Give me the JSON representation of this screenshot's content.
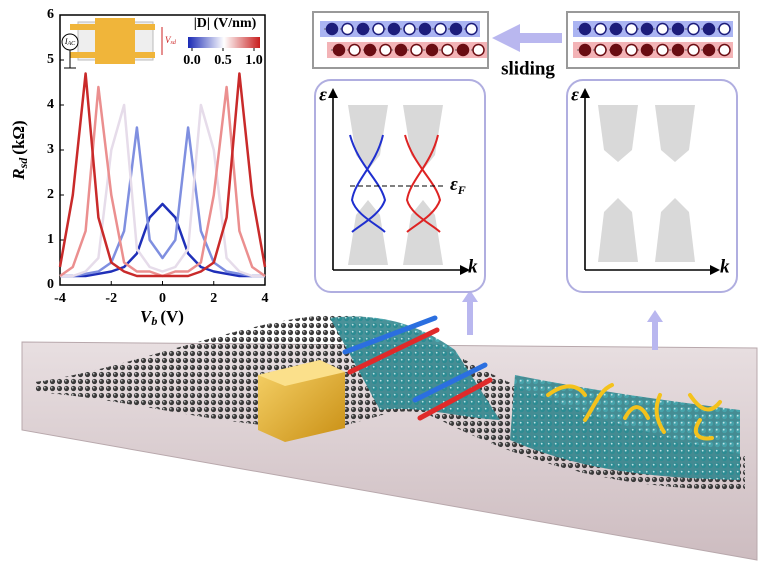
{
  "chart_data": {
    "type": "line",
    "x": [
      -4,
      -3.5,
      -3,
      -2.5,
      -2,
      -1.5,
      -1,
      -0.5,
      0,
      0.5,
      1,
      1.5,
      2,
      2.5,
      3,
      3.5,
      4
    ],
    "xlim": [
      -4,
      4
    ],
    "xticks": [
      -4,
      -2,
      0,
      2,
      4
    ],
    "ylim": [
      0,
      6
    ],
    "yticks": [
      0,
      1,
      2,
      3,
      4,
      5,
      6
    ],
    "x_label": {
      "symbol": "V",
      "sub": "b",
      "unit": "(V)"
    },
    "y_label": {
      "symbol": "R",
      "sub": "sd",
      "unit": "(kΩ)"
    },
    "series": [
      {
        "color": "#1f2fb8",
        "values": [
          0.2,
          0.2,
          0.2,
          0.25,
          0.3,
          0.4,
          0.7,
          1.5,
          1.8,
          1.5,
          0.7,
          0.4,
          0.3,
          0.25,
          0.2,
          0.2,
          0.2
        ]
      },
      {
        "color": "#7f8fe0",
        "values": [
          0.2,
          0.2,
          0.25,
          0.3,
          0.5,
          1.2,
          3.5,
          1.0,
          0.6,
          1.0,
          3.5,
          1.2,
          0.5,
          0.3,
          0.25,
          0.2,
          0.2
        ]
      },
      {
        "color": "#e6dcea",
        "values": [
          0.2,
          0.2,
          0.3,
          0.6,
          3.0,
          4.0,
          0.8,
          0.4,
          0.3,
          0.4,
          0.8,
          4.0,
          3.0,
          0.6,
          0.3,
          0.2,
          0.2
        ]
      },
      {
        "color": "#eb8f8f",
        "values": [
          0.2,
          0.4,
          1.2,
          4.4,
          2.0,
          0.5,
          0.3,
          0.3,
          0.2,
          0.3,
          0.3,
          0.5,
          2.0,
          4.4,
          1.2,
          0.4,
          0.2
        ]
      },
      {
        "color": "#c92a2a",
        "values": [
          0.4,
          2.0,
          4.7,
          1.5,
          0.5,
          0.3,
          0.2,
          0.2,
          0.2,
          0.2,
          0.2,
          0.3,
          0.5,
          1.5,
          4.7,
          2.0,
          0.4
        ]
      }
    ],
    "colorbar": {
      "label": "|D| (V/nm)",
      "colors": [
        "#1a2ab5",
        "#ffffff",
        "#c81e1e"
      ],
      "ticks": [
        {
          "value": 0,
          "label": "0.0"
        },
        {
          "value": 0.5,
          "label": "0.5"
        },
        {
          "value": 1,
          "label": "1.0"
        }
      ]
    },
    "circuit": {
      "source": "I",
      "source_sub": "AC",
      "voltage": "V",
      "voltage_sub": "sd"
    }
  },
  "diagram": {
    "sliding": "sliding",
    "left_panel": {
      "y_axis": "ε",
      "x_axis": "k",
      "fermi": "ε",
      "fermi_sub": "F"
    },
    "right_panel": {
      "y_axis": "ε",
      "x_axis": "k"
    }
  }
}
